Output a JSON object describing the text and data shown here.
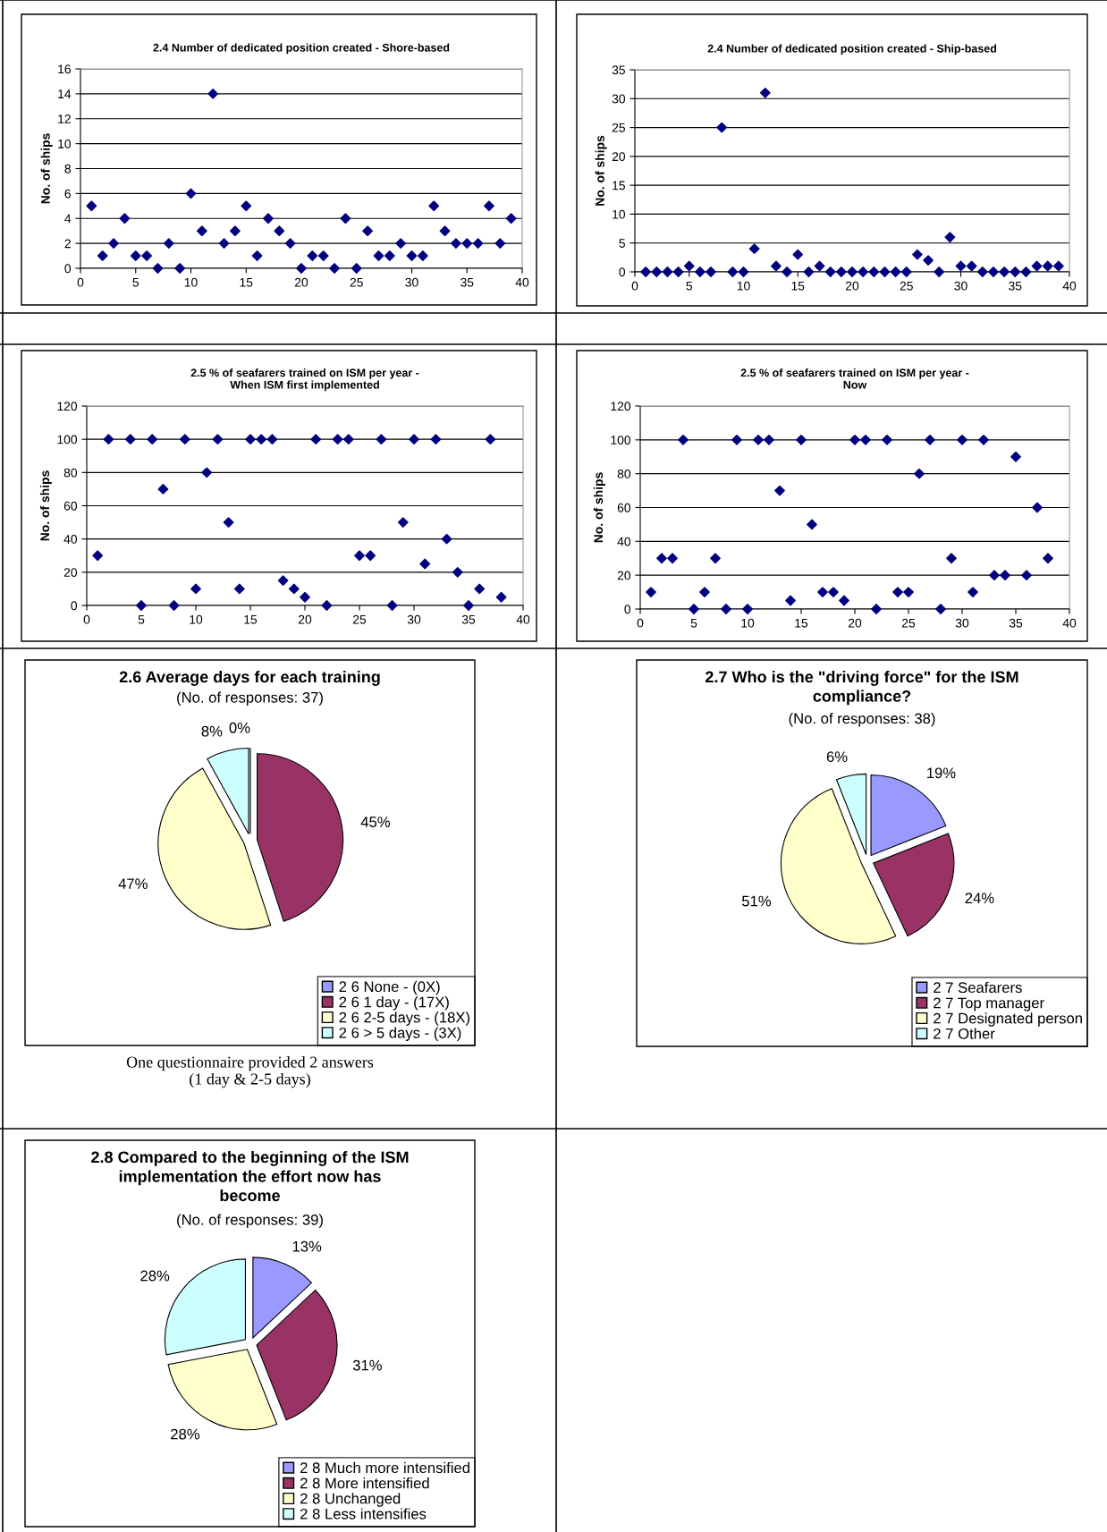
{
  "chart_data": [
    {
      "type": "scatter",
      "title": "2.4 Number of dedicated position created - Shore-based",
      "ylabel": "No. of ships",
      "x": [
        1,
        2,
        3,
        4,
        5,
        6,
        7,
        8,
        9,
        10,
        11,
        12,
        13,
        14,
        15,
        16,
        17,
        18,
        19,
        20,
        21,
        22,
        23,
        24,
        25,
        26,
        27,
        28,
        29,
        30,
        31,
        32,
        33,
        34,
        35,
        36,
        37,
        38,
        39
      ],
      "series": [
        {
          "color": "#000080",
          "values": [
            5,
            1,
            2,
            4,
            1,
            1,
            0,
            2,
            0,
            6,
            3,
            14,
            2,
            3,
            5,
            1,
            4,
            3,
            2,
            0,
            1,
            1,
            0,
            4,
            0,
            3,
            1,
            1,
            2,
            1,
            1,
            5,
            3,
            2,
            2,
            2,
            5,
            2,
            4
          ]
        }
      ],
      "xlim": [
        0,
        40
      ],
      "xticks": [
        0,
        5,
        10,
        15,
        20,
        25,
        30,
        35,
        40
      ],
      "ylim": [
        0,
        16
      ],
      "yticks": [
        0,
        2,
        4,
        6,
        8,
        10,
        12,
        14,
        16
      ],
      "grid": "y",
      "marker": "diamond"
    },
    {
      "type": "scatter",
      "title": "2.4 Number of dedicated position created - Ship-based",
      "ylabel": "No. of ships",
      "x": [
        1,
        2,
        3,
        4,
        5,
        6,
        7,
        8,
        9,
        10,
        11,
        12,
        13,
        14,
        15,
        16,
        17,
        18,
        19,
        20,
        21,
        22,
        23,
        24,
        25,
        26,
        27,
        28,
        29,
        30,
        31,
        32,
        33,
        34,
        35,
        36,
        37,
        38,
        39
      ],
      "series": [
        {
          "color": "#000080",
          "values": [
            0,
            0,
            0,
            0,
            1,
            0,
            0,
            25,
            0,
            0,
            4,
            31,
            1,
            0,
            3,
            0,
            1,
            0,
            0,
            0,
            0,
            0,
            0,
            0,
            0,
            3,
            2,
            0,
            6,
            1,
            1,
            0,
            0,
            0,
            0,
            0,
            1,
            1,
            1
          ]
        }
      ],
      "xlim": [
        0,
        40
      ],
      "xticks": [
        0,
        5,
        10,
        15,
        20,
        25,
        30,
        35,
        40
      ],
      "ylim": [
        0,
        35
      ],
      "yticks": [
        0,
        5,
        10,
        15,
        20,
        25,
        30,
        35
      ],
      "grid": "y",
      "marker": "diamond"
    },
    {
      "type": "scatter",
      "title": "2.5 % of seafarers trained on ISM per year -\nWhen ISM first implemented",
      "ylabel": "No. of ships",
      "x": [
        1,
        2,
        4,
        5,
        6,
        7,
        8,
        9,
        10,
        11,
        12,
        13,
        14,
        15,
        16,
        17,
        18,
        19,
        20,
        21,
        22,
        23,
        24,
        25,
        26,
        27,
        28,
        29,
        30,
        31,
        32,
        33,
        34,
        35,
        36,
        37,
        38
      ],
      "series": [
        {
          "color": "#000080",
          "values": [
            30,
            100,
            100,
            0,
            100,
            70,
            0,
            100,
            10,
            80,
            100,
            50,
            10,
            100,
            100,
            100,
            15,
            10,
            5,
            100,
            0,
            100,
            100,
            30,
            30,
            100,
            0,
            50,
            100,
            25,
            100,
            40,
            20,
            0,
            10,
            100,
            5
          ]
        }
      ],
      "xlim": [
        0,
        40
      ],
      "xticks": [
        0,
        5,
        10,
        15,
        20,
        25,
        30,
        35,
        40
      ],
      "ylim": [
        0,
        120
      ],
      "yticks": [
        0,
        20,
        40,
        60,
        80,
        100,
        120
      ],
      "grid": "y",
      "marker": "diamond"
    },
    {
      "type": "scatter",
      "title": "2.5 % of seafarers trained on ISM per year -\nNow",
      "ylabel": "No. of ships",
      "x": [
        1,
        2,
        3,
        4,
        5,
        6,
        7,
        8,
        9,
        10,
        11,
        12,
        13,
        14,
        15,
        16,
        17,
        18,
        19,
        20,
        21,
        22,
        23,
        24,
        25,
        26,
        27,
        28,
        29,
        30,
        31,
        32,
        33,
        34,
        35,
        36,
        37,
        38
      ],
      "series": [
        {
          "color": "#000080",
          "values": [
            10,
            30,
            30,
            100,
            0,
            10,
            30,
            0,
            100,
            0,
            100,
            100,
            70,
            5,
            100,
            50,
            10,
            10,
            5,
            100,
            100,
            0,
            100,
            10,
            10,
            80,
            100,
            0,
            30,
            100,
            10,
            100,
            20,
            20,
            90,
            20,
            60,
            30
          ]
        }
      ],
      "xlim": [
        0,
        40
      ],
      "xticks": [
        0,
        5,
        10,
        15,
        20,
        25,
        30,
        35,
        40
      ],
      "ylim": [
        0,
        120
      ],
      "yticks": [
        0,
        20,
        40,
        60,
        80,
        100,
        120
      ],
      "grid": "y",
      "marker": "diamond"
    },
    {
      "type": "pie",
      "title": "2.6 Average days for each training",
      "subtitle": "(No. of responses: 37)",
      "categories": [
        "2 6 None - (0X)",
        "2 6 1 day - (17X)",
        "2 6 2-5 days - (18X)",
        "2 6 > 5 days - (3X)"
      ],
      "values": [
        0,
        45,
        47,
        8
      ],
      "value_labels": [
        "0%",
        "45%",
        "47%",
        "8%"
      ],
      "colors": [
        "#9999ff",
        "#993366",
        "#ffffcc",
        "#ccffff"
      ],
      "legend": "bottom right",
      "annotations": [
        "One questionnaire provided 2 answers\n(1 day & 2-5 days)"
      ]
    },
    {
      "type": "pie",
      "title": "2.7 Who is the \"driving force\" for the ISM\ncompliance?",
      "subtitle": "(No. of responses: 38)",
      "categories": [
        "2 7 Seafarers",
        "2 7 Top manager",
        "2 7 Designated person",
        "2 7 Other"
      ],
      "values": [
        19,
        24,
        51,
        6
      ],
      "value_labels": [
        "19%",
        "24%",
        "51%",
        "6%"
      ],
      "colors": [
        "#9999ff",
        "#993366",
        "#ffffcc",
        "#ccffff"
      ],
      "legend": "bottom right"
    },
    {
      "type": "pie",
      "title": "2.8 Compared to the beginning of the ISM\nimplementation the effort now has\nbecome",
      "subtitle": "(No. of responses: 39)",
      "categories": [
        "2 8 Much more intensified",
        "2 8 More intensified",
        "2 8 Unchanged",
        "2 8 Less intensifies"
      ],
      "values": [
        13,
        31,
        28,
        28
      ],
      "value_labels": [
        "13%",
        "31%",
        "28%",
        "28%"
      ],
      "colors": [
        "#9999ff",
        "#993366",
        "#ffffcc",
        "#ccffff"
      ],
      "legend": "bottom right"
    }
  ]
}
